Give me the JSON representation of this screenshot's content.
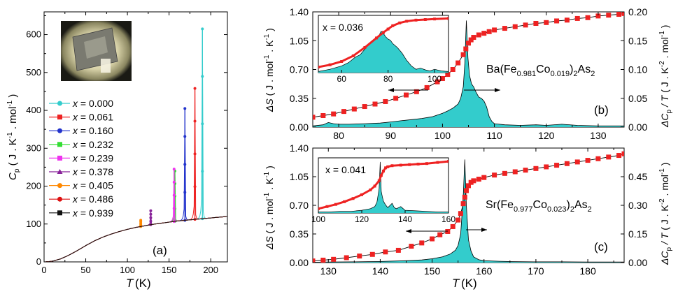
{
  "chart_data": [
    {
      "panel": "(a)",
      "type": "line",
      "xlabel_main": "T",
      "xlabel_unit": "(K)",
      "ylabel": "Cp ( J . K-1 . mol-1 )",
      "xlim": [
        0,
        220
      ],
      "ylim": [
        0,
        660
      ],
      "xticks": [
        0,
        50,
        100,
        150,
        200
      ],
      "yticks": [
        0,
        100,
        200,
        300,
        400,
        500,
        600
      ],
      "legend_position": "center-left",
      "legend_prefix": "x =",
      "series": [
        {
          "name": "0.000",
          "color": "#33cccc",
          "marker": "circle",
          "Tc": 190,
          "peak": 615
        },
        {
          "name": "0.061",
          "color": "#ee2222",
          "marker": "square",
          "Tc": 181,
          "peak": 458
        },
        {
          "name": "0.160",
          "color": "#2233cc",
          "marker": "circle",
          "Tc": 169,
          "peak": 405
        },
        {
          "name": "0.232",
          "color": "#33dd33",
          "marker": "square",
          "Tc": 157,
          "peak": 240
        },
        {
          "name": "0.239",
          "color": "#ee33ee",
          "marker": "square",
          "Tc": 156,
          "peak": 245
        },
        {
          "name": "0.378",
          "color": "#882299",
          "marker": "triangle",
          "Tc": 128,
          "peak": 135
        },
        {
          "name": "0.405",
          "color": "#ff8800",
          "marker": "circle",
          "Tc": 116,
          "peak": 110
        },
        {
          "name": "0.486",
          "color": "#dd1111",
          "marker": "circle",
          "Tc": 0,
          "peak": 0
        },
        {
          "name": "0.939",
          "color": "#111111",
          "marker": "square",
          "Tc": 0,
          "peak": 0
        }
      ],
      "background_curve": {
        "x": [
          0,
          5,
          10,
          20,
          30,
          40,
          50,
          60,
          70,
          80,
          90,
          100,
          110,
          120,
          130,
          140,
          150,
          160,
          170,
          180,
          190,
          200,
          210,
          220
        ],
        "y": [
          0,
          0.5,
          2,
          8,
          18,
          30,
          43,
          55,
          65,
          73,
          80,
          86,
          91,
          95,
          99,
          102,
          105,
          108,
          110,
          112,
          114,
          116,
          118,
          120
        ]
      }
    },
    {
      "panel": "(b)",
      "type": "area+line",
      "compound_prefix": "Ba(Fe",
      "sub1": "0.981",
      "mid": "Co",
      "sub2": "0.019",
      "suffix": ")",
      "sub3": "2",
      "tail": "As",
      "sub4": "2",
      "ylabel_left": "ΔS ( J . mol-1 . K-1 )",
      "ylabel_right": "ΔCp / T ( J . K-2 . mol-1 )",
      "xlim": [
        75,
        135
      ],
      "ylim_left": [
        0,
        1.4
      ],
      "ylim_right": [
        0,
        0.2
      ],
      "xticks": [
        80,
        90,
        100,
        110,
        120,
        130
      ],
      "yticks_left": [
        "0.00",
        "0.35",
        "0.70",
        "1.05",
        "1.40"
      ],
      "yticks_right": [
        "0.00",
        "0.05",
        "0.10",
        "0.15",
        "0.20"
      ],
      "entropy": {
        "x": [
          75,
          77,
          79,
          81,
          83,
          85,
          87,
          89,
          91,
          93,
          95,
          97,
          99,
          100,
          101,
          102,
          103,
          104,
          104.5,
          105,
          105.5,
          106,
          107,
          108,
          109,
          110,
          112,
          114,
          116,
          118,
          120,
          122,
          124,
          126,
          128,
          130,
          132,
          134,
          135
        ],
        "y": [
          0.12,
          0.14,
          0.16,
          0.19,
          0.22,
          0.25,
          0.28,
          0.31,
          0.35,
          0.39,
          0.43,
          0.48,
          0.55,
          0.59,
          0.64,
          0.7,
          0.78,
          0.88,
          0.95,
          1.02,
          1.06,
          1.09,
          1.12,
          1.14,
          1.16,
          1.18,
          1.2,
          1.22,
          1.24,
          1.26,
          1.27,
          1.29,
          1.3,
          1.32,
          1.33,
          1.35,
          1.36,
          1.37,
          1.38
        ]
      },
      "dcp": {
        "x": [
          75,
          77,
          78,
          79,
          80,
          82,
          85,
          88,
          90,
          92,
          94,
          96,
          98,
          99,
          100,
          101,
          102,
          103,
          103.5,
          104,
          104.3,
          104.6,
          104.9,
          105.2,
          105.6,
          106,
          106.5,
          107,
          107.5,
          108,
          108.5,
          109,
          109.5,
          110,
          112,
          115,
          118,
          120,
          123,
          126,
          130,
          135
        ],
        "y": [
          0.002,
          0.004,
          0.008,
          0.006,
          0.005,
          0.005,
          0.006,
          0.007,
          0.009,
          0.011,
          0.013,
          0.015,
          0.018,
          0.021,
          0.024,
          0.028,
          0.033,
          0.04,
          0.05,
          0.07,
          0.11,
          0.185,
          0.12,
          0.09,
          0.075,
          0.07,
          0.06,
          0.052,
          0.05,
          0.045,
          0.035,
          0.018,
          0.01,
          0.006,
          0.004,
          0.003,
          0.004,
          0.003,
          0.005,
          0.003,
          0.002,
          0.002
        ]
      },
      "inset": {
        "label": "x = 0.036",
        "xlim": [
          50,
          106
        ],
        "xticks": [
          60,
          80,
          100
        ],
        "entropy": {
          "x": [
            50,
            55,
            60,
            65,
            70,
            75,
            78,
            80,
            82,
            85,
            88,
            92,
            96,
            100,
            106
          ],
          "y": [
            0.1,
            0.14,
            0.2,
            0.3,
            0.45,
            0.62,
            0.72,
            0.78,
            0.84,
            0.89,
            0.92,
            0.94,
            0.95,
            0.96,
            0.97
          ]
        },
        "dcp": {
          "x": [
            50,
            55,
            60,
            63,
            66,
            68,
            70,
            72,
            74,
            76,
            77,
            78,
            79,
            80,
            81,
            82,
            84,
            86,
            88,
            90,
            92,
            94,
            96,
            98,
            100,
            103,
            106
          ],
          "y": [
            0.02,
            0.06,
            0.12,
            0.18,
            0.28,
            0.32,
            0.42,
            0.52,
            0.6,
            0.66,
            0.74,
            0.7,
            0.64,
            0.6,
            0.58,
            0.52,
            0.45,
            0.35,
            0.22,
            0.12,
            0.06,
            0.08,
            0.05,
            0.03,
            0.06,
            0.03,
            0.02
          ]
        }
      }
    },
    {
      "panel": "(c)",
      "type": "area+line",
      "compound_prefix": "Sr(Fe",
      "sub1": "0.977",
      "mid": "Co",
      "sub2": "0.023",
      "suffix": ")",
      "sub3": "2",
      "tail": "As",
      "sub4": "2",
      "ylabel_left": "ΔS ( J . mol-1 . K-1 )",
      "ylabel_right": "ΔCp / T ( J . K-2 . mol-1 )",
      "xlim": [
        127,
        187
      ],
      "ylim_left": [
        0,
        1.4
      ],
      "ylim_right": [
        0,
        0.6
      ],
      "xticks": [
        130,
        140,
        150,
        160,
        170,
        180
      ],
      "yticks_left": [
        "0.00",
        "0.35",
        "0.70",
        "1.05",
        "1.40"
      ],
      "yticks_right": [
        "0.00",
        "0.15",
        "0.30",
        "0.45"
      ],
      "entropy": {
        "x": [
          127,
          129,
          131,
          133.5,
          136,
          138.5,
          141,
          143.5,
          146,
          148,
          150,
          151.5,
          153,
          154,
          155,
          155.5,
          156,
          156.3,
          156.6,
          157,
          157.5,
          158,
          159,
          160,
          162,
          164,
          166,
          168,
          170,
          172,
          174,
          176,
          178,
          180,
          182,
          184,
          186,
          187
        ],
        "y": [
          0.02,
          0.03,
          0.04,
          0.06,
          0.08,
          0.1,
          0.13,
          0.15,
          0.2,
          0.24,
          0.29,
          0.34,
          0.38,
          0.44,
          0.52,
          0.6,
          0.72,
          0.8,
          0.88,
          0.94,
          0.98,
          1.0,
          1.02,
          1.04,
          1.07,
          1.09,
          1.11,
          1.13,
          1.15,
          1.17,
          1.19,
          1.21,
          1.23,
          1.25,
          1.27,
          1.29,
          1.31,
          1.33
        ]
      },
      "dcp": {
        "x": [
          127,
          130,
          135,
          140,
          145,
          148,
          150,
          152,
          153.5,
          154.5,
          155,
          155.5,
          156,
          156.3,
          156.6,
          157,
          157.5,
          158,
          159,
          160,
          163,
          166,
          170,
          175,
          180,
          187
        ],
        "y": [
          0.002,
          0.003,
          0.004,
          0.006,
          0.01,
          0.014,
          0.02,
          0.03,
          0.045,
          0.065,
          0.09,
          0.15,
          0.35,
          0.54,
          0.3,
          0.12,
          0.06,
          0.03,
          0.015,
          0.01,
          0.007,
          0.005,
          0.004,
          0.004,
          0.003,
          0.003
        ]
      },
      "inset": {
        "label": "x = 0.041",
        "xlim": [
          100,
          160
        ],
        "xticks": [
          100,
          120,
          140,
          160
        ],
        "entropy": {
          "x": [
            100,
            104,
            108,
            112,
            116,
            120,
            124,
            126,
            128,
            129,
            130,
            131,
            132,
            134,
            138,
            142,
            146,
            150,
            155,
            160
          ],
          "y": [
            0.08,
            0.12,
            0.16,
            0.21,
            0.27,
            0.34,
            0.43,
            0.5,
            0.6,
            0.7,
            0.78,
            0.84,
            0.86,
            0.88,
            0.89,
            0.9,
            0.91,
            0.92,
            0.94,
            0.96
          ]
        },
        "dcp": {
          "x": [
            100,
            105,
            110,
            115,
            120,
            124,
            126,
            127,
            128,
            128.5,
            129,
            129.5,
            130,
            131,
            132,
            133,
            134,
            135,
            136,
            138,
            140,
            145,
            150,
            155,
            160
          ],
          "y": [
            0.02,
            0.02,
            0.03,
            0.03,
            0.05,
            0.08,
            0.12,
            0.2,
            0.45,
            0.95,
            0.4,
            0.3,
            0.22,
            0.15,
            0.1,
            0.14,
            0.18,
            0.1,
            0.08,
            0.12,
            0.05,
            0.04,
            0.03,
            0.02,
            0.02
          ]
        }
      }
    }
  ]
}
